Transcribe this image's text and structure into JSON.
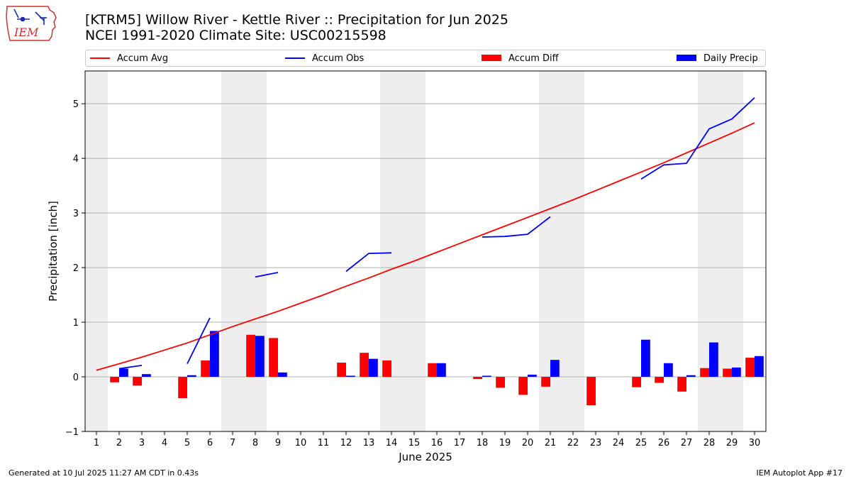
{
  "header": {
    "title_line1": "[KTRM5] Willow River - Kettle River :: Precipitation for Jun 2025",
    "title_line2": "NCEI 1991-2020 Climate Site: USC00215598"
  },
  "logo": {
    "text": "IEM",
    "icon": "iowa-state-outline-icon"
  },
  "footer": {
    "generated": "Generated at 10 Jul 2025 11:27 AM CDT in 0.43s",
    "app": "IEM Autoplot App #17"
  },
  "colors": {
    "avg": "#ff0000",
    "obs": "#0000ff",
    "diff": "#ff0000",
    "daily": "#0000ff",
    "weekend_band": "#eeeeee",
    "grid": "#b0b0b0"
  },
  "legend": [
    {
      "label": "Accum Avg",
      "kind": "line",
      "color_key": "avg"
    },
    {
      "label": "Accum Obs",
      "kind": "line",
      "color_key": "obs"
    },
    {
      "label": "Accum Diff",
      "kind": "patch",
      "color_key": "diff"
    },
    {
      "label": "Daily Precip",
      "kind": "patch",
      "color_key": "daily"
    }
  ],
  "chart_data": {
    "type": "bar",
    "xlabel": "June 2025",
    "ylabel": "Precipitation [inch]",
    "xlim": [
      0.5,
      30.5
    ],
    "ylim": [
      -1,
      5.6
    ],
    "yticks": [
      -1,
      0,
      1,
      2,
      3,
      4,
      5
    ],
    "grid": "y",
    "legend_position": "top",
    "days": [
      1,
      2,
      3,
      4,
      5,
      6,
      7,
      8,
      9,
      10,
      11,
      12,
      13,
      14,
      15,
      16,
      17,
      18,
      19,
      20,
      21,
      22,
      23,
      24,
      25,
      26,
      27,
      28,
      29,
      30
    ],
    "weekend_days": [
      1,
      7,
      8,
      14,
      15,
      21,
      22,
      28,
      29
    ],
    "series": [
      {
        "name": "Accum Avg",
        "type": "line",
        "values": [
          0.12,
          0.24,
          0.36,
          0.49,
          0.62,
          0.77,
          0.92,
          1.06,
          1.2,
          1.35,
          1.5,
          1.66,
          1.81,
          1.97,
          2.12,
          2.28,
          2.44,
          2.6,
          2.76,
          2.92,
          3.08,
          3.24,
          3.41,
          3.58,
          3.75,
          3.92,
          4.1,
          4.28,
          4.46,
          4.65
        ]
      },
      {
        "name": "Accum Obs",
        "type": "line",
        "values": [
          null,
          0.15,
          0.21,
          null,
          0.24,
          1.08,
          null,
          1.83,
          1.91,
          null,
          null,
          1.93,
          2.26,
          2.27,
          null,
          null,
          null,
          2.56,
          2.57,
          2.61,
          2.93,
          null,
          null,
          null,
          3.62,
          3.88,
          3.91,
          4.54,
          4.72,
          5.11
        ]
      },
      {
        "name": "Accum Diff",
        "type": "bar",
        "values": [
          0,
          -0.1,
          -0.16,
          0,
          -0.39,
          0.3,
          0,
          0.77,
          0.71,
          0,
          0,
          0.26,
          0.44,
          0.3,
          0,
          0.25,
          0,
          -0.04,
          -0.2,
          -0.33,
          -0.18,
          0,
          -0.52,
          0,
          -0.19,
          -0.11,
          -0.27,
          0.16,
          0.15,
          0.35
        ]
      },
      {
        "name": "Daily Precip",
        "type": "bar",
        "values": [
          0,
          0.15,
          0.05,
          0,
          0.03,
          0.84,
          0,
          0.75,
          0.08,
          0,
          0,
          0.02,
          0.33,
          0,
          0,
          0.25,
          0,
          0.02,
          0,
          0.04,
          0.31,
          0,
          0,
          0,
          0.68,
          0.25,
          0.03,
          0.63,
          0.17,
          0.38
        ]
      }
    ]
  }
}
